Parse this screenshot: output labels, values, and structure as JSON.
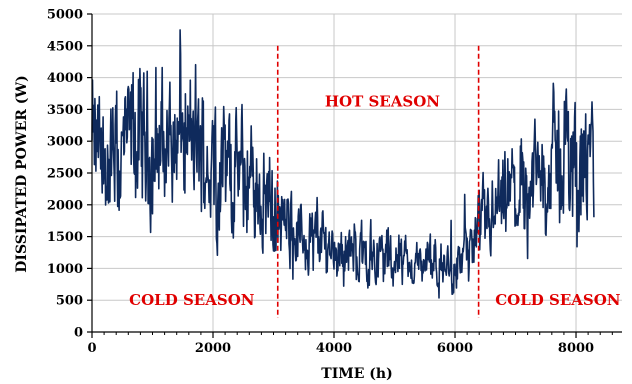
{
  "chart_data": {
    "type": "line",
    "xlabel": "TIME (h)",
    "ylabel": "DISSIPATED POWER (W)",
    "xlim": [
      0,
      8760
    ],
    "ylim": [
      0,
      5000
    ],
    "x_ticks": [
      0,
      2000,
      4000,
      6000,
      8000
    ],
    "y_ticks": [
      0,
      500,
      1000,
      1500,
      2000,
      2500,
      3000,
      3500,
      4000,
      4500,
      5000
    ],
    "grid": true,
    "line_color": "#0f2a5c",
    "annotation_color": "#e00000",
    "series": [
      {
        "x": [
          0,
          200,
          400,
          600,
          700,
          800,
          1000,
          1200,
          1400,
          1600,
          1800,
          2000,
          2200,
          2400,
          2600,
          2800,
          3000,
          3100,
          3300,
          3500,
          3700,
          4000,
          4300,
          4600,
          4900,
          5200,
          5500,
          5800,
          6000,
          6200,
          6400,
          6600,
          6800,
          7000,
          7200,
          7400,
          7600,
          7800,
          8000,
          8200,
          8300
        ],
        "values": [
          2900,
          2650,
          2600,
          2900,
          3100,
          2850,
          2900,
          3000,
          3100,
          2950,
          2800,
          2650,
          2600,
          2500,
          2300,
          2200,
          2000,
          1700,
          1550,
          1500,
          1450,
          1350,
          1250,
          1200,
          1150,
          1100,
          1050,
          1000,
          1050,
          1200,
          1500,
          1700,
          1900,
          2100,
          2300,
          2400,
          2600,
          2800,
          2700,
          2500,
          2500
        ]
      }
    ],
    "vlines": [
      3070,
      6390
    ],
    "annotations": [
      {
        "text": "HOT SEASON",
        "x": 4800,
        "y": 3625
      },
      {
        "text": "COLD SEASON",
        "x": 1650,
        "y": 500
      },
      {
        "text": "COLD SEASON",
        "x": 7700,
        "y": 500
      }
    ]
  }
}
